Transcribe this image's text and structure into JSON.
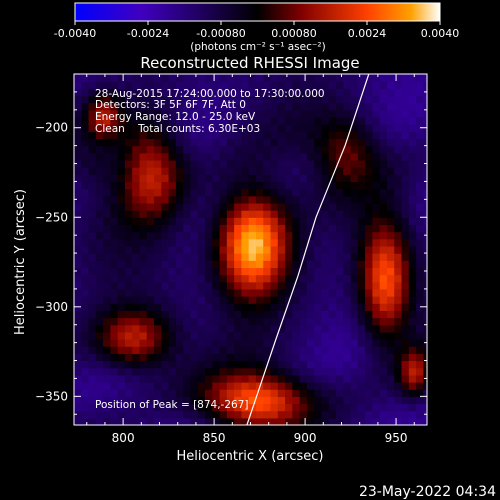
{
  "colorbar": {
    "ticks": [
      "-0.0040",
      "-0.0024",
      "-0.00080",
      "0.00080",
      "0.0024",
      "0.0040"
    ],
    "units_label": "(photons cm⁻² s⁻¹ asec⁻²)",
    "colors": [
      "#0000ff",
      "#4000c0",
      "#000000",
      "#800000",
      "#ff4000",
      "#ffa000",
      "#ffffff"
    ]
  },
  "annotations": [
    "28-Aug-2015 17:24:00.000 to 17:30:00.000",
    "Detectors: 3F 5F 6F 7F, Att 0",
    "Energy Range: 12.0 - 25.0 keV",
    "Clean    Total counts: 6.30E+03"
  ],
  "peak_text": "Position of Peak = [874,-267]",
  "timestamp": "23-May-2022 04:34",
  "chart_data": {
    "type": "heatmap",
    "title": "Reconstructed RHESSI Image",
    "xlabel": "Heliocentric X (arcsec)",
    "ylabel": "Heliocentric Y (arcsec)",
    "xlim": [
      773,
      967
    ],
    "ylim": [
      -366,
      -170
    ],
    "x_ticks": [
      800,
      850,
      900,
      950
    ],
    "y_ticks": [
      -200,
      -250,
      -300,
      -350
    ],
    "colorbar_range": [
      -0.004,
      0.004
    ],
    "peak_position": [
      874,
      -267
    ],
    "sources": [
      {
        "x": 871,
        "y": -265,
        "sx": 14,
        "sy": 21,
        "value": 0.004
      },
      {
        "x": 815,
        "y": -222,
        "sx": 13,
        "sy": 20,
        "value": 0.0018
      },
      {
        "x": 789,
        "y": -193,
        "sx": 7,
        "sy": 9,
        "value": 0.0012
      },
      {
        "x": 806,
        "y": -318,
        "sx": 15,
        "sy": 12,
        "value": 0.0018
      },
      {
        "x": 873,
        "y": -352,
        "sx": 20,
        "sy": 11,
        "value": 0.0026
      },
      {
        "x": 944,
        "y": -285,
        "sx": 10,
        "sy": 24,
        "value": 0.0026
      },
      {
        "x": 923,
        "y": -213,
        "sx": 13,
        "sy": 14,
        "value": 0.0008
      },
      {
        "x": 960,
        "y": -337,
        "sx": 6,
        "sy": 10,
        "value": 0.0013
      },
      {
        "x": 911,
        "y": -262,
        "sx": 11,
        "sy": 15,
        "value": -0.0016
      },
      {
        "x": 785,
        "y": -223,
        "sx": 7,
        "sy": 9,
        "value": -0.0008
      }
    ],
    "limb": [
      [
        935,
        -170
      ],
      [
        922,
        -210
      ],
      [
        906,
        -250
      ],
      [
        896,
        -283
      ],
      [
        884,
        -318
      ],
      [
        874,
        -348
      ],
      [
        868,
        -366
      ]
    ]
  }
}
